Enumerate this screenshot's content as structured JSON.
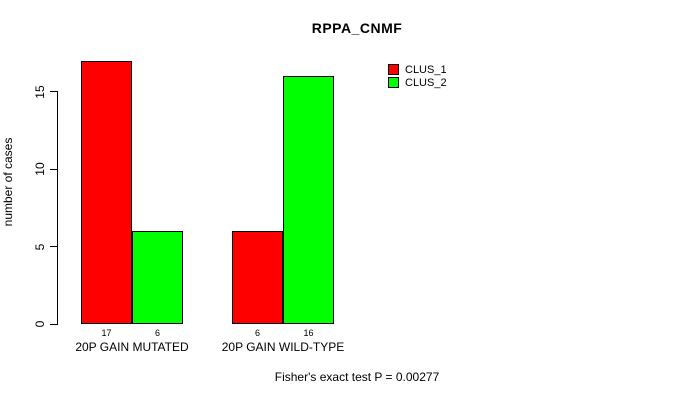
{
  "title": "RPPA_CNMF",
  "ylabel": "number of cases",
  "footer": "Fisher's exact test P = 0.00277",
  "legend": {
    "items": [
      {
        "label": "CLUS_1",
        "color": "#FF0000"
      },
      {
        "label": "CLUS_2",
        "color": "#00FF00"
      }
    ]
  },
  "chart_data": {
    "type": "bar",
    "title": "RPPA_CNMF",
    "xlabel": "",
    "ylabel": "number of cases",
    "categories": [
      "20P GAIN MUTATED",
      "20P GAIN WILD-TYPE"
    ],
    "series": [
      {
        "name": "CLUS_1",
        "color": "#FF0000",
        "values": [
          17,
          6
        ]
      },
      {
        "name": "CLUS_2",
        "color": "#00FF00",
        "values": [
          6,
          16
        ]
      }
    ],
    "bar_value_labels": [
      [
        "17",
        "6"
      ],
      [
        "6",
        "16"
      ]
    ],
    "yticks": [
      0,
      5,
      10,
      15
    ],
    "ylim": [
      0,
      17
    ],
    "grid": false,
    "legend_position": "top-right",
    "annotation": "Fisher's exact test P = 0.00277",
    "bar_border_color": "#000000"
  }
}
